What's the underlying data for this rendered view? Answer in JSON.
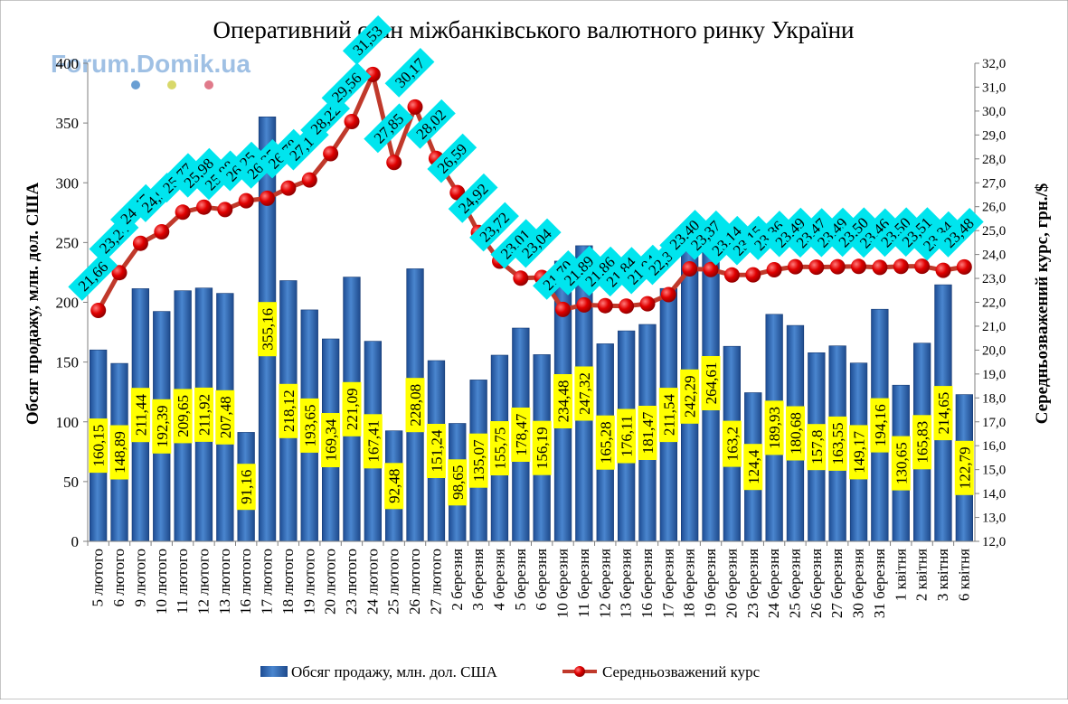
{
  "chart_data": {
    "type": "bar",
    "title": "Оперативний стан міжбанківського валютного ринку України",
    "watermark": "Forum.Domik.ua",
    "ylabel_left": "Обсяг продажу, млн. дол. США",
    "ylabel_right": "Середньозважений курс, грн./$",
    "ylim_left": [
      0,
      400
    ],
    "ylim_right": [
      12,
      32
    ],
    "yticks_left": [
      "0",
      "50",
      "100",
      "150",
      "200",
      "250",
      "300",
      "350",
      "400"
    ],
    "yticks_right": [
      "12,0",
      "13,0",
      "14,0",
      "15,0",
      "16,0",
      "17,0",
      "18,0",
      "19,0",
      "20,0",
      "21,0",
      "22,0",
      "23,0",
      "24,0",
      "25,0",
      "26,0",
      "27,0",
      "28,0",
      "29,0",
      "30,0",
      "31,0",
      "32,0"
    ],
    "categories": [
      "5 лютого",
      "6 лютого",
      "9 лютого",
      "10 лютого",
      "11 лютого",
      "12 лютого",
      "13 лютого",
      "16 лютого",
      "17 лютого",
      "18 лютого",
      "19 лютого",
      "20 лютого",
      "23 лютого",
      "24 лютого",
      "25 лютого",
      "26 лютого",
      "27 лютого",
      "2 березня",
      "3 березня",
      "4 березня",
      "5 березня",
      "6 березня",
      "10 березня",
      "11 березня",
      "12 березня",
      "13 березня",
      "16 березня",
      "17 березня",
      "18 березня",
      "19 березня",
      "20 березня",
      "23 березня",
      "24 березня",
      "25 березня",
      "26 березня",
      "27 березня",
      "30 березня",
      "31 березня",
      "1 квітня",
      "2 квітня",
      "3 квітня",
      "6 квітня"
    ],
    "series": [
      {
        "name": "Обсяг продажу, млн. дол. США",
        "type": "bar",
        "axis": "left",
        "color": "#2f63ad",
        "values": [
          160.15,
          148.89,
          211.44,
          192.39,
          209.65,
          211.92,
          207.48,
          91.16,
          355.16,
          218.12,
          193.65,
          169.34,
          221.09,
          167.41,
          92.48,
          228.08,
          151.24,
          98.65,
          135.07,
          155.75,
          178.47,
          156.19,
          234.48,
          247.32,
          165.28,
          176.11,
          181.47,
          211.54,
          242.29,
          264.61,
          163.2,
          124.4,
          189.93,
          180.68,
          157.8,
          163.55,
          149.17,
          194.16,
          130.65,
          165.83,
          214.65,
          122.79
        ],
        "labels": [
          "160,15",
          "148,89",
          "211,44",
          "192,39",
          "209,65",
          "211,92",
          "207,48",
          "91,16",
          "355,16",
          "218,12",
          "193,65",
          "169,34",
          "221,09",
          "167,41",
          "92,48",
          "228,08",
          "151,24",
          "98,65",
          "135,07",
          "155,75",
          "178,47",
          "156,19",
          "234,48",
          "247,32",
          "165,28",
          "176,11",
          "181,47",
          "211,54",
          "242,29",
          "264,61",
          "163,2",
          "124,4",
          "189,93",
          "180,68",
          "157,8",
          "163,55",
          "149,17",
          "194,16",
          "130,65",
          "165,83",
          "214,65",
          "122,79"
        ]
      },
      {
        "name": "Середньозважений курс",
        "type": "line",
        "axis": "right",
        "color": "#c0392b",
        "values": [
          21.66,
          23.24,
          24.47,
          24.95,
          25.77,
          25.98,
          25.88,
          26.25,
          26.35,
          26.78,
          27.12,
          28.22,
          29.56,
          31.53,
          27.85,
          30.17,
          28.02,
          26.59,
          24.92,
          23.72,
          23.01,
          23.04,
          21.7,
          21.89,
          21.86,
          21.84,
          21.94,
          22.32,
          23.4,
          23.37,
          23.14,
          23.15,
          23.36,
          23.49,
          23.47,
          23.49,
          23.5,
          23.46,
          23.5,
          23.51,
          23.34,
          23.48
        ],
        "labels": [
          "21,66",
          "23,24",
          "24,47",
          "24,95",
          "25,77",
          "25,98",
          "25,88",
          "26,25",
          "26,35",
          "26,78",
          "27,12",
          "28,22",
          "29,56",
          "31,53",
          "27,85",
          "30,17",
          "28,02",
          "26,59",
          "24,92",
          "23,72",
          "23,01",
          "23,04",
          "21,70",
          "21,89",
          "21,86",
          "21,84",
          "21,94",
          "22,32",
          "23,40",
          "23,37",
          "23,14",
          "23,15",
          "23,36",
          "23,49",
          "23,47",
          "23,49",
          "23,50",
          "23,46",
          "23,50",
          "23,51",
          "23,34",
          "23,48"
        ]
      }
    ],
    "bar_label_color": "#ffff00",
    "line_label_color": "#00e5ee",
    "legend_position": "bottom",
    "grid": false
  }
}
